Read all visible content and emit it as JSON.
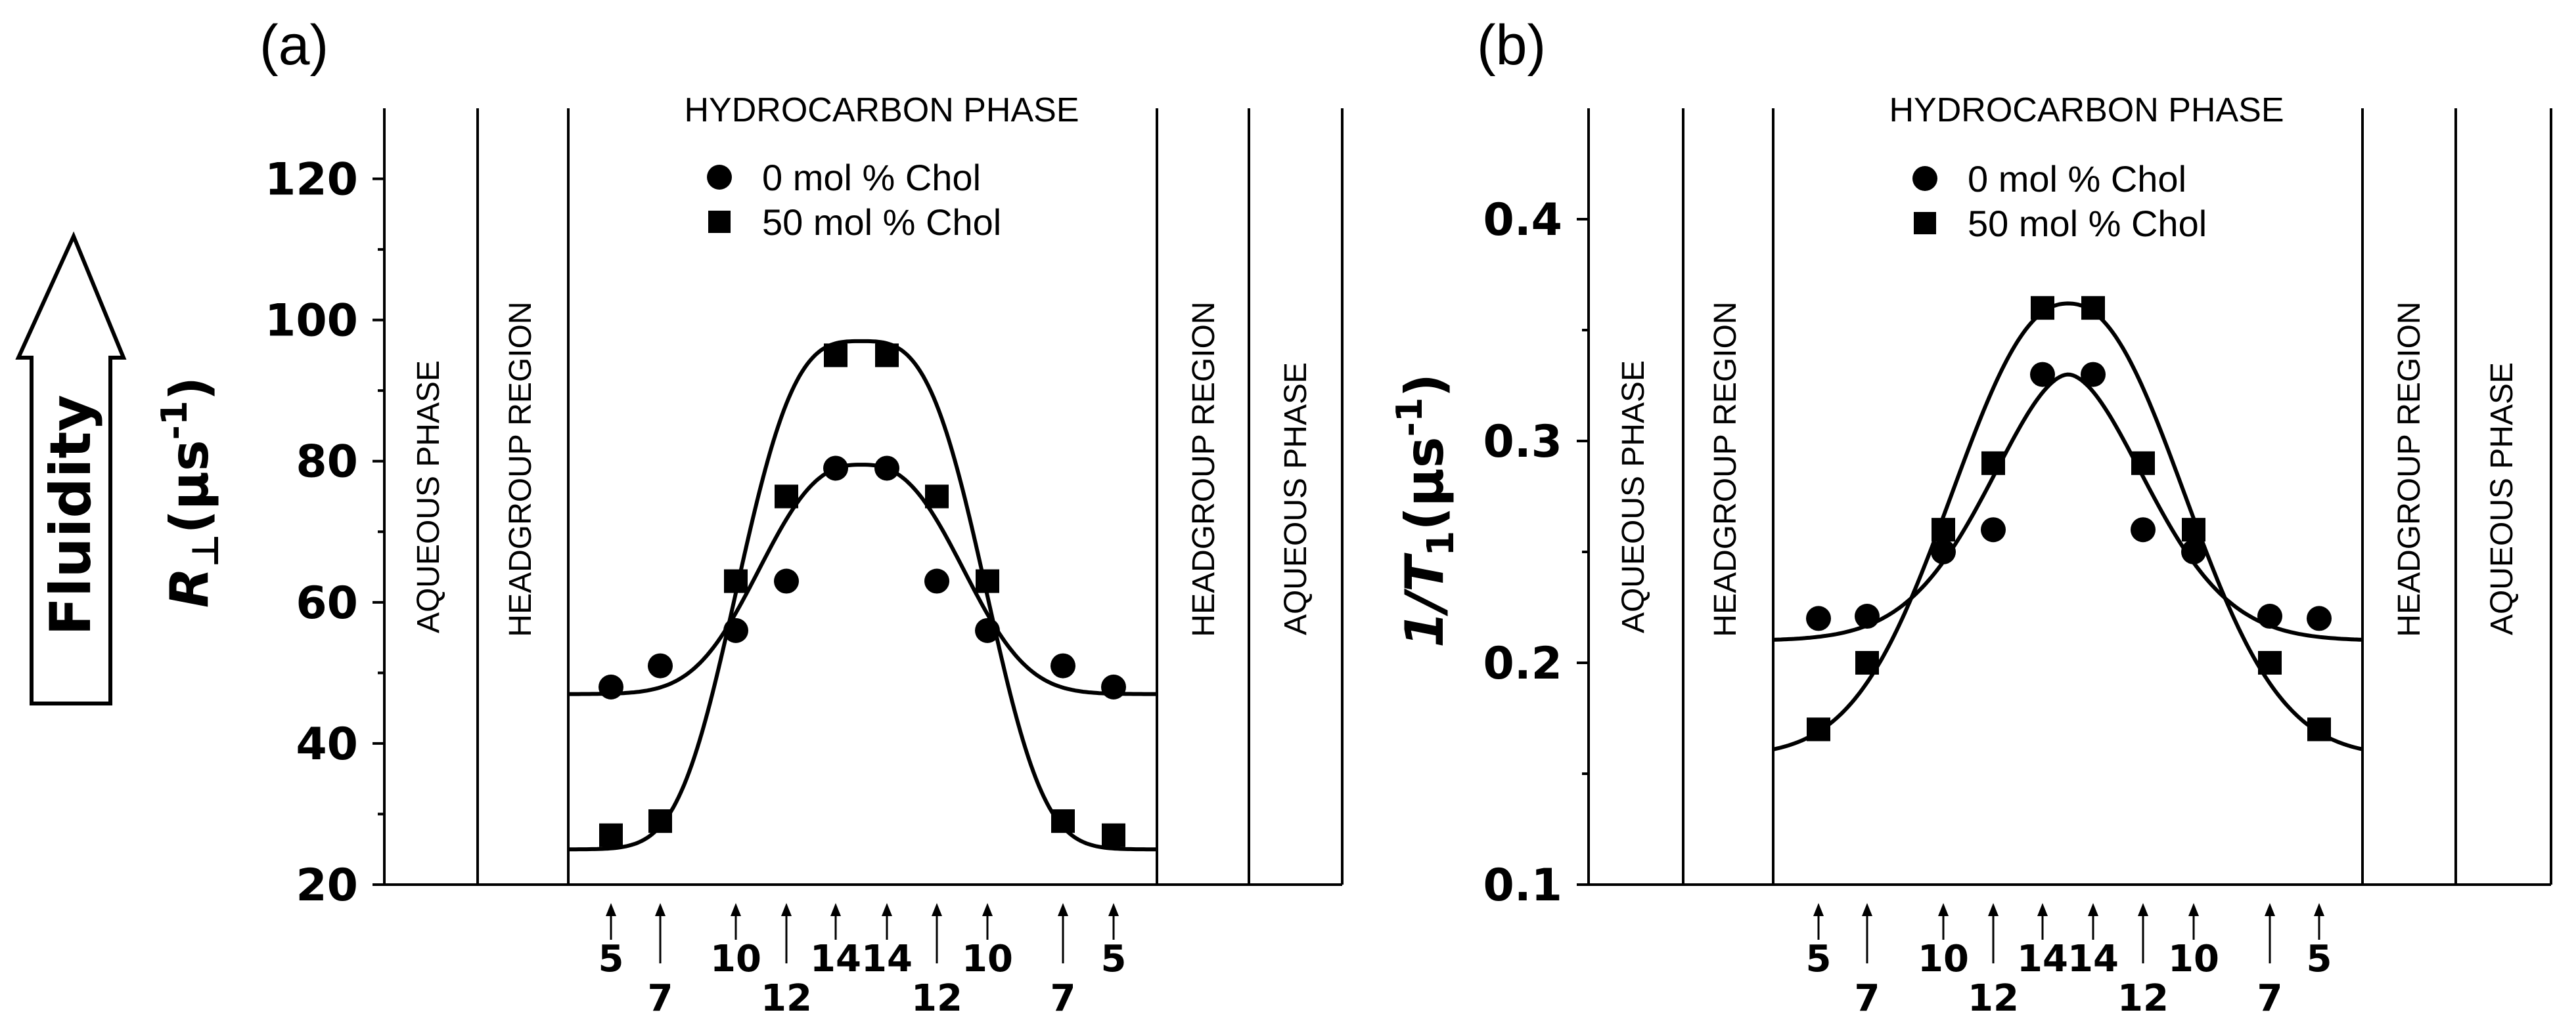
{
  "side_label": "Fluidity",
  "chart_data": [
    {
      "type": "scatter",
      "panel_label": "(a)",
      "ylabel_main": "R",
      "ylabel_sub": "⊥",
      "ylabel_unit": "(μs",
      "ylabel_exp": "-1",
      "ylabel_close": ")",
      "ylim": [
        20,
        130
      ],
      "yticks": [
        20,
        40,
        60,
        80,
        100,
        120
      ],
      "region_labels": {
        "aqueous": "AQUEOUS PHASE",
        "headgroup": "HEADGROUP REGION",
        "hydrocarbon": "HYDROCARBON PHASE"
      },
      "x_positions": [
        "5",
        "7",
        "10",
        "12",
        "14",
        "14",
        "12",
        "10",
        "7",
        "5"
      ],
      "series": [
        {
          "name": "0 mol % Chol",
          "marker": "circle",
          "values": [
            48,
            51,
            56,
            63,
            79,
            79,
            63,
            56,
            51,
            48
          ],
          "fit_edge": 47,
          "fit_peak": 79.5
        },
        {
          "name": "50 mol % Chol",
          "marker": "square",
          "values": [
            27,
            29,
            63,
            75,
            95,
            95,
            75,
            63,
            29,
            27
          ],
          "fit_edge": 25,
          "fit_peak": 97
        }
      ]
    },
    {
      "type": "scatter",
      "panel_label": "(b)",
      "ylabel_main": "1/T",
      "ylabel_sub": "1",
      "ylabel_unit": "(μs",
      "ylabel_exp": "-1",
      "ylabel_close": ")",
      "ylim": [
        0.1,
        0.45
      ],
      "yticks": [
        0.1,
        0.2,
        0.3,
        0.4
      ],
      "region_labels": {
        "aqueous": "AQUEOUS PHASE",
        "headgroup": "HEADGROUP REGION",
        "hydrocarbon": "HYDROCARBON PHASE"
      },
      "x_positions": [
        "5",
        "7",
        "10",
        "12",
        "14",
        "14",
        "12",
        "10",
        "7",
        "5"
      ],
      "series": [
        {
          "name": "0 mol % Chol",
          "marker": "circle",
          "values": [
            0.22,
            0.221,
            0.25,
            0.26,
            0.33,
            0.33,
            0.26,
            0.25,
            0.221,
            0.22
          ],
          "fit_edge": 0.21,
          "fit_peak": 0.33
        },
        {
          "name": "50 mol % Chol",
          "marker": "square",
          "values": [
            0.17,
            0.2,
            0.26,
            0.29,
            0.36,
            0.36,
            0.29,
            0.26,
            0.2,
            0.17
          ],
          "fit_edge": 0.158,
          "fit_peak": 0.362
        }
      ]
    }
  ]
}
